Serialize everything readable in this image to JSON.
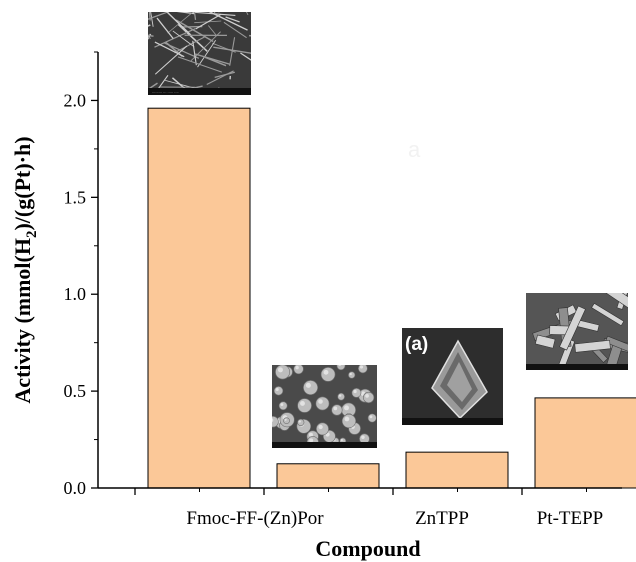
{
  "chart_data": {
    "type": "bar",
    "categories": [
      "Fmoc-FF-(Zn)Por",
      "",
      "ZnTPP",
      "Pt-TEPP"
    ],
    "values": [
      1.96,
      0.125,
      0.185,
      0.465
    ],
    "ylabel_main": "Activity (mmol(H",
    "ylabel_sub": "2",
    "ylabel_tail": ")/(g(Pt)·h)",
    "xlabel": "Compound",
    "ylim": [
      0,
      2.25
    ],
    "yticks": [
      "0.0",
      "0.5",
      "1.0",
      "1.5",
      "2.0"
    ],
    "bar_color": "#fbc898",
    "grid": false,
    "legend": "none"
  },
  "insets": [
    {
      "kind": "sem-fibers",
      "tag": ""
    },
    {
      "kind": "sem-spheres",
      "tag": ""
    },
    {
      "kind": "sem-crystal",
      "tag": "(a)"
    },
    {
      "kind": "sem-rods",
      "tag": ""
    }
  ],
  "watermark": "a"
}
